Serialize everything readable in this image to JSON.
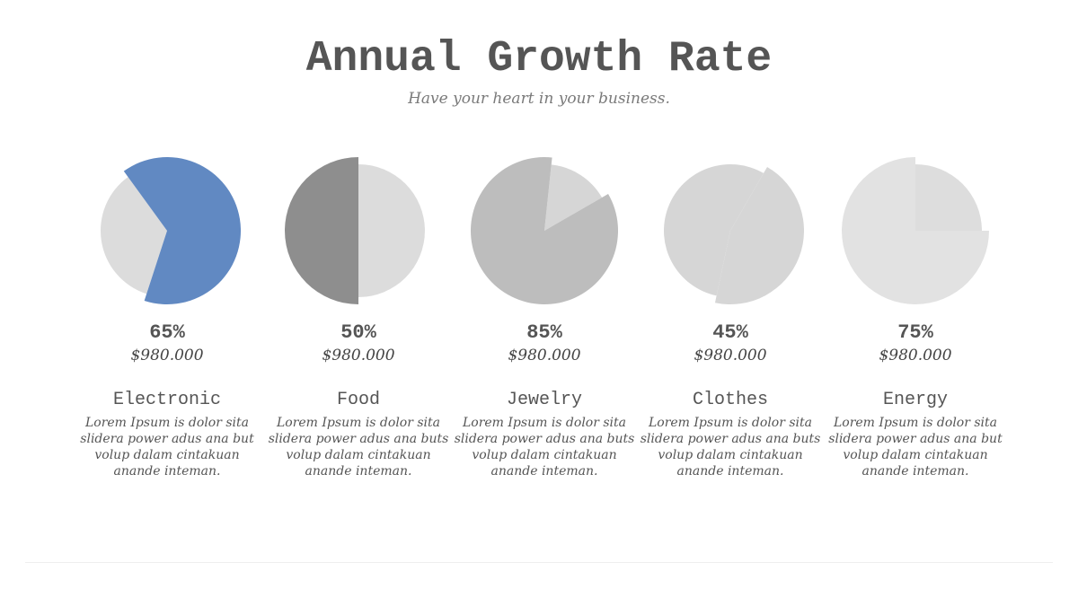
{
  "header": {
    "title": "Annual Growth Rate",
    "subtitle": "Have your heart in your business."
  },
  "chart_data": {
    "type": "pie",
    "title": "Annual Growth Rate",
    "subtitle": "Have your heart in your business.",
    "categories": [
      "Electronic",
      "Food",
      "Jewelry",
      "Clothes",
      "Energy"
    ],
    "values": [
      65,
      50,
      85,
      45,
      75
    ],
    "value_labels": [
      "65%",
      "50%",
      "85%",
      "45%",
      "75%"
    ],
    "amounts": [
      "$980.000",
      "$980.000",
      "$980.000",
      "$980.000",
      "$980.000"
    ],
    "descriptions": [
      "Lorem Ipsum is dolor sita slidera power adus ana but volup dalam cintakuan anande inteman.",
      "Lorem Ipsum is dolor sita slidera power adus ana buts volup dalam cintakuan anande inteman.",
      "Lorem Ipsum is dolor sita slidera power adus ana buts volup dalam cintakuan anande inteman.",
      "Lorem Ipsum is dolor sita slidera power adus ana buts volup dalam cintakuan anande inteman.",
      "Lorem Ipsum is dolor sita slidera power adus ana but volup dalam cintakuan anande inteman."
    ],
    "colors": {
      "highlight": [
        "#6189c2",
        "#8e8e8e",
        "#bdbdbd",
        "#d6d6d6",
        "#e2e2e2"
      ],
      "remainder": [
        "#dcdcdc",
        "#dcdcdc",
        "#d6d6d6",
        "#d6d6d6",
        "#dddddd"
      ]
    },
    "legend": "none",
    "grid": false
  }
}
